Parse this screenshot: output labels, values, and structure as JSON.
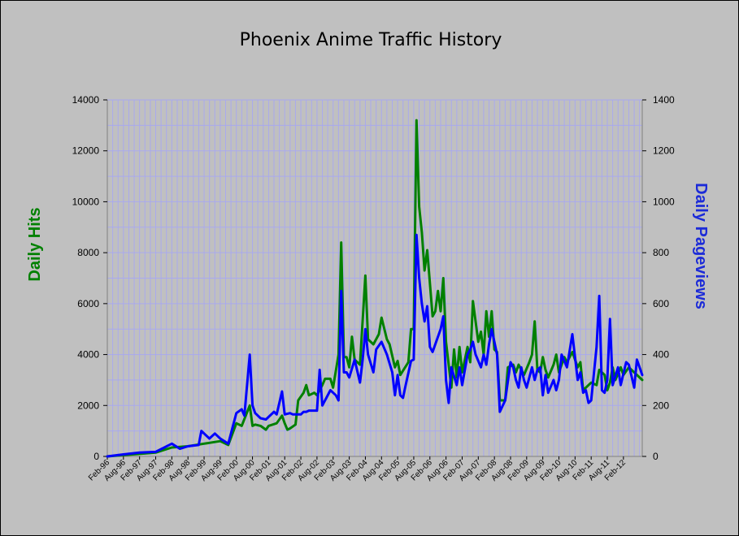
{
  "chart_data": {
    "type": "line",
    "title": "Phoenix Anime Traffic History",
    "ylabel_left": "Daily Hits",
    "ylabel_right": "Daily Pageviews",
    "ylim_left": [
      0,
      14000
    ],
    "ylim_right": [
      0,
      1400
    ],
    "yticks_left": [
      "0",
      "2000",
      "4000",
      "6000",
      "8000",
      "10000",
      "12000",
      "14000"
    ],
    "yticks_right": [
      "0",
      "200",
      "400",
      "600",
      "800",
      "1000",
      "1200",
      "1400"
    ],
    "x_tick_labels": [
      "Feb-96",
      "Aug-96",
      "Feb-97",
      "Aug-97",
      "Feb-98",
      "Aug-98",
      "Feb-99",
      "Aug-99",
      "Feb-00",
      "Aug-00",
      "Feb-01",
      "Aug-01",
      "Feb-02",
      "Aug-02",
      "Feb-03",
      "Aug-03",
      "Feb-04",
      "Aug-04",
      "Feb-05",
      "Aug-05",
      "Feb-06",
      "Aug-06",
      "Feb-07",
      "Aug-07",
      "Feb-08",
      "Aug-08",
      "Feb-09",
      "Aug-09",
      "Feb-10",
      "Aug-10",
      "Feb-11",
      "Aug-11",
      "Feb-12"
    ],
    "x_range_months": [
      "Feb-96",
      "Sep-12"
    ],
    "grid": true,
    "series": [
      {
        "name": "Daily Hits",
        "axis": "left",
        "color": "#008000",
        "points": [
          [
            "Feb-96",
            0
          ],
          [
            "Aug-96",
            50
          ],
          [
            "Feb-97",
            100
          ],
          [
            "Aug-97",
            150
          ],
          [
            "Feb-98",
            350
          ],
          [
            "Aug-98",
            400
          ],
          [
            "Feb-99",
            500
          ],
          [
            "Aug-99",
            600
          ],
          [
            "Nov-99",
            450
          ],
          [
            "Feb-00",
            1300
          ],
          [
            "Apr-00",
            1200
          ],
          [
            "Jul-00",
            2000
          ],
          [
            "Aug-00",
            1200
          ],
          [
            "Sep-00",
            1250
          ],
          [
            "Nov-00",
            1200
          ],
          [
            "Jan-01",
            1050
          ],
          [
            "Feb-01",
            1200
          ],
          [
            "May-01",
            1300
          ],
          [
            "Jul-01",
            1600
          ],
          [
            "Aug-01",
            1300
          ],
          [
            "Sep-01",
            1050
          ],
          [
            "Oct-01",
            1100
          ],
          [
            "Dec-01",
            1250
          ],
          [
            "Jan-02",
            2200
          ],
          [
            "Mar-02",
            2500
          ],
          [
            "Apr-02",
            2800
          ],
          [
            "May-02",
            2400
          ],
          [
            "Jul-02",
            2500
          ],
          [
            "Aug-02",
            2400
          ],
          [
            "Oct-02",
            2800
          ],
          [
            "Nov-02",
            3050
          ],
          [
            "Jan-03",
            3050
          ],
          [
            "Feb-03",
            2700
          ],
          [
            "Apr-03",
            4000
          ],
          [
            "May-03",
            8400
          ],
          [
            "Jun-03",
            3900
          ],
          [
            "Jul-03",
            3900
          ],
          [
            "Aug-03",
            3500
          ],
          [
            "Sep-03",
            4700
          ],
          [
            "Oct-03",
            3800
          ],
          [
            "Dec-03",
            3600
          ],
          [
            "Feb-04",
            7100
          ],
          [
            "Mar-04",
            4600
          ],
          [
            "May-04",
            4400
          ],
          [
            "Jul-04",
            4800
          ],
          [
            "Aug-04",
            5450
          ],
          [
            "Oct-04",
            4600
          ],
          [
            "Nov-04",
            4400
          ],
          [
            "Jan-05",
            3500
          ],
          [
            "Feb-05",
            3750
          ],
          [
            "Mar-05",
            3200
          ],
          [
            "Jun-05",
            3700
          ],
          [
            "Jul-05",
            5000
          ],
          [
            "Aug-05",
            5000
          ],
          [
            "Sep-05",
            13200
          ],
          [
            "Oct-05",
            9800
          ],
          [
            "Nov-05",
            8800
          ],
          [
            "Dec-05",
            7300
          ],
          [
            "Jan-06",
            8100
          ],
          [
            "Mar-06",
            5500
          ],
          [
            "Apr-06",
            5700
          ],
          [
            "May-06",
            6500
          ],
          [
            "Jun-06",
            5700
          ],
          [
            "Jul-06",
            7000
          ],
          [
            "Aug-06",
            4500
          ],
          [
            "Oct-06",
            2700
          ],
          [
            "Nov-06",
            4200
          ],
          [
            "Dec-06",
            3100
          ],
          [
            "Jan-07",
            4300
          ],
          [
            "Feb-07",
            3300
          ],
          [
            "Apr-07",
            4300
          ],
          [
            "May-07",
            3700
          ],
          [
            "Jun-07",
            6100
          ],
          [
            "Aug-07",
            4500
          ],
          [
            "Sep-07",
            4900
          ],
          [
            "Oct-07",
            4000
          ],
          [
            "Nov-07",
            5700
          ],
          [
            "Dec-07",
            4700
          ],
          [
            "Jan-08",
            5700
          ],
          [
            "Feb-08",
            4200
          ],
          [
            "Mar-08",
            4100
          ],
          [
            "Apr-08",
            2200
          ],
          [
            "Jun-08",
            2200
          ],
          [
            "Jul-08",
            3500
          ],
          [
            "Sep-08",
            3600
          ],
          [
            "Oct-08",
            3300
          ],
          [
            "Nov-08",
            3600
          ],
          [
            "Jan-09",
            3200
          ],
          [
            "Mar-09",
            3700
          ],
          [
            "Apr-09",
            4000
          ],
          [
            "May-09",
            5300
          ],
          [
            "Jun-09",
            3400
          ],
          [
            "Jul-09",
            3300
          ],
          [
            "Aug-09",
            3900
          ],
          [
            "Sep-09",
            3400
          ],
          [
            "Oct-09",
            3100
          ],
          [
            "Dec-09",
            3600
          ],
          [
            "Jan-10",
            4000
          ],
          [
            "Feb-10",
            3300
          ],
          [
            "Apr-10",
            3900
          ],
          [
            "May-10",
            3700
          ],
          [
            "Jul-10",
            4100
          ],
          [
            "Sep-10",
            3500
          ],
          [
            "Oct-10",
            3700
          ],
          [
            "Nov-10",
            2600
          ],
          [
            "Jan-11",
            2800
          ],
          [
            "Feb-11",
            2900
          ],
          [
            "Apr-11",
            2800
          ],
          [
            "May-11",
            3400
          ],
          [
            "Jul-11",
            3200
          ],
          [
            "Aug-11",
            2600
          ],
          [
            "Sep-11",
            2900
          ],
          [
            "Oct-11",
            3500
          ],
          [
            "Nov-11",
            3000
          ],
          [
            "Jan-12",
            3500
          ],
          [
            "Feb-12",
            3200
          ],
          [
            "Apr-12",
            3500
          ],
          [
            "Sep-12",
            3000
          ]
        ]
      },
      {
        "name": "Daily Pageviews",
        "axis": "right",
        "color": "#0000ff",
        "points": [
          [
            "Feb-96",
            0
          ],
          [
            "Aug-96",
            8
          ],
          [
            "Feb-97",
            15
          ],
          [
            "Aug-97",
            18
          ],
          [
            "Feb-98",
            50
          ],
          [
            "May-98",
            30
          ],
          [
            "Aug-98",
            40
          ],
          [
            "Dec-98",
            45
          ],
          [
            "Jan-99",
            100
          ],
          [
            "Apr-99",
            70
          ],
          [
            "Jun-99",
            90
          ],
          [
            "Aug-99",
            70
          ],
          [
            "Nov-99",
            50
          ],
          [
            "Feb-00",
            170
          ],
          [
            "Apr-00",
            185
          ],
          [
            "May-00",
            160
          ],
          [
            "Jul-00",
            400
          ],
          [
            "Aug-00",
            200
          ],
          [
            "Sep-00",
            170
          ],
          [
            "Nov-00",
            150
          ],
          [
            "Jan-01",
            145
          ],
          [
            "Apr-01",
            175
          ],
          [
            "May-01",
            165
          ],
          [
            "Jul-01",
            255
          ],
          [
            "Aug-01",
            165
          ],
          [
            "Oct-01",
            170
          ],
          [
            "Nov-01",
            165
          ],
          [
            "Feb-02",
            165
          ],
          [
            "Mar-02",
            175
          ],
          [
            "Apr-02",
            175
          ],
          [
            "May-02",
            180
          ],
          [
            "Aug-02",
            180
          ],
          [
            "Sep-02",
            340
          ],
          [
            "Oct-02",
            200
          ],
          [
            "Jan-03",
            260
          ],
          [
            "Mar-03",
            240
          ],
          [
            "Apr-03",
            220
          ],
          [
            "May-03",
            650
          ],
          [
            "Jun-03",
            330
          ],
          [
            "Jul-03",
            330
          ],
          [
            "Aug-03",
            310
          ],
          [
            "Oct-03",
            380
          ],
          [
            "Dec-03",
            290
          ],
          [
            "Jan-04",
            380
          ],
          [
            "Feb-04",
            500
          ],
          [
            "Mar-04",
            400
          ],
          [
            "May-04",
            330
          ],
          [
            "Jun-04",
            420
          ],
          [
            "Aug-04",
            450
          ],
          [
            "Oct-04",
            400
          ],
          [
            "Dec-04",
            330
          ],
          [
            "Jan-05",
            240
          ],
          [
            "Feb-05",
            320
          ],
          [
            "Mar-05",
            240
          ],
          [
            "Apr-05",
            230
          ],
          [
            "May-05",
            280
          ],
          [
            "Jul-05",
            375
          ],
          [
            "Aug-05",
            380
          ],
          [
            "Sep-05",
            870
          ],
          [
            "Oct-05",
            700
          ],
          [
            "Nov-05",
            600
          ],
          [
            "Dec-05",
            530
          ],
          [
            "Jan-06",
            590
          ],
          [
            "Feb-06",
            430
          ],
          [
            "Mar-06",
            410
          ],
          [
            "Apr-06",
            440
          ],
          [
            "Jun-06",
            500
          ],
          [
            "Jul-06",
            550
          ],
          [
            "Aug-06",
            300
          ],
          [
            "Sep-06",
            210
          ],
          [
            "Oct-06",
            350
          ],
          [
            "Dec-06",
            280
          ],
          [
            "Jan-07",
            350
          ],
          [
            "Feb-07",
            280
          ],
          [
            "Apr-07",
            400
          ],
          [
            "May-07",
            420
          ],
          [
            "Jun-07",
            450
          ],
          [
            "Jul-07",
            400
          ],
          [
            "Sep-07",
            350
          ],
          [
            "Oct-07",
            400
          ],
          [
            "Nov-07",
            360
          ],
          [
            "Dec-07",
            440
          ],
          [
            "Jan-08",
            500
          ],
          [
            "Mar-08",
            400
          ],
          [
            "Apr-08",
            175
          ],
          [
            "Jun-08",
            220
          ],
          [
            "Aug-08",
            370
          ],
          [
            "Sep-08",
            350
          ],
          [
            "Oct-08",
            300
          ],
          [
            "Nov-08",
            270
          ],
          [
            "Dec-08",
            350
          ],
          [
            "Jan-09",
            300
          ],
          [
            "Feb-09",
            270
          ],
          [
            "Apr-09",
            350
          ],
          [
            "May-09",
            300
          ],
          [
            "Jun-09",
            340
          ],
          [
            "Jul-09",
            350
          ],
          [
            "Aug-09",
            240
          ],
          [
            "Sep-09",
            320
          ],
          [
            "Oct-09",
            250
          ],
          [
            "Dec-09",
            300
          ],
          [
            "Jan-10",
            260
          ],
          [
            "Feb-10",
            300
          ],
          [
            "Mar-10",
            400
          ],
          [
            "May-10",
            350
          ],
          [
            "Jul-10",
            480
          ],
          [
            "Sep-10",
            300
          ],
          [
            "Oct-10",
            330
          ],
          [
            "Nov-10",
            250
          ],
          [
            "Dec-10",
            260
          ],
          [
            "Jan-11",
            210
          ],
          [
            "Feb-11",
            220
          ],
          [
            "Apr-11",
            430
          ],
          [
            "May-11",
            630
          ],
          [
            "Jun-11",
            260
          ],
          [
            "Jul-11",
            250
          ],
          [
            "Aug-11",
            300
          ],
          [
            "Sep-11",
            540
          ],
          [
            "Oct-11",
            280
          ],
          [
            "Dec-11",
            350
          ],
          [
            "Jan-12",
            280
          ],
          [
            "Mar-12",
            370
          ],
          [
            "Apr-12",
            360
          ],
          [
            "Jun-12",
            270
          ],
          [
            "Jul-12",
            380
          ],
          [
            "Sep-12",
            320
          ]
        ]
      }
    ]
  }
}
